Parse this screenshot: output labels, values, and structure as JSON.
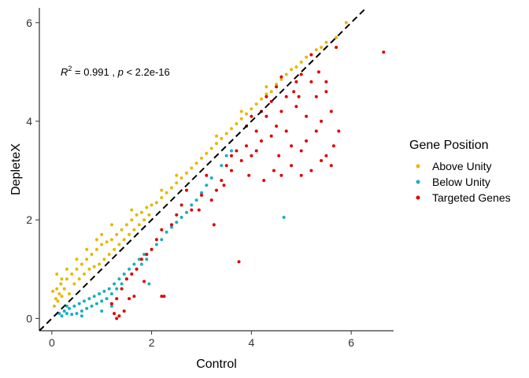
{
  "chart_data": {
    "type": "scatter",
    "xlabel": "Control",
    "ylabel": "DepleteX",
    "xlim": [
      -0.25,
      6.85
    ],
    "ylim": [
      -0.25,
      6.3
    ],
    "x_ticks": [
      0,
      2,
      4,
      6
    ],
    "y_ticks": [
      0,
      2,
      4,
      6
    ],
    "x_tick_labels": [
      "0",
      "2",
      "4",
      "6"
    ],
    "y_tick_labels": [
      "0",
      "2",
      "4",
      "6"
    ],
    "grid": false,
    "legend_position": "right",
    "legend_title": "Gene Position",
    "reference_line": {
      "slope": 1,
      "intercept": 0,
      "style": "dashed",
      "color": "#000000"
    },
    "annotation": {
      "r2_symbol": "R",
      "r2_exp": "2",
      "r2_value": " = 0.991 , ",
      "p_symbol": "p",
      "p_value": " < 2.2e-16"
    },
    "series": [
      {
        "name": "Above Unity",
        "color": "#E6B800",
        "points": [
          [
            0.02,
            0.55
          ],
          [
            0.05,
            0.25
          ],
          [
            0.08,
            0.4
          ],
          [
            0.1,
            0.6
          ],
          [
            0.12,
            0.35
          ],
          [
            0.15,
            0.5
          ],
          [
            0.18,
            0.7
          ],
          [
            0.2,
            0.45
          ],
          [
            0.25,
            0.6
          ],
          [
            0.3,
            0.8
          ],
          [
            0.35,
            0.5
          ],
          [
            0.4,
            0.9
          ],
          [
            0.45,
            0.7
          ],
          [
            0.5,
            1.0
          ],
          [
            0.55,
            0.8
          ],
          [
            0.6,
            1.1
          ],
          [
            0.65,
            0.9
          ],
          [
            0.7,
            1.2
          ],
          [
            0.75,
            1.0
          ],
          [
            0.8,
            1.3
          ],
          [
            0.85,
            1.05
          ],
          [
            0.9,
            1.4
          ],
          [
            0.95,
            1.1
          ],
          [
            1.0,
            1.5
          ],
          [
            1.05,
            1.2
          ],
          [
            1.1,
            1.55
          ],
          [
            1.15,
            1.3
          ],
          [
            1.2,
            1.6
          ],
          [
            1.25,
            1.4
          ],
          [
            1.3,
            1.7
          ],
          [
            1.35,
            1.5
          ],
          [
            1.4,
            1.8
          ],
          [
            1.45,
            1.6
          ],
          [
            1.5,
            1.9
          ],
          [
            1.55,
            1.7
          ],
          [
            1.6,
            2.0
          ],
          [
            1.65,
            1.8
          ],
          [
            1.7,
            2.1
          ],
          [
            1.75,
            1.9
          ],
          [
            1.8,
            2.15
          ],
          [
            1.85,
            2.0
          ],
          [
            1.9,
            2.25
          ],
          [
            1.95,
            2.1
          ],
          [
            2.0,
            2.3
          ],
          [
            2.1,
            2.35
          ],
          [
            2.2,
            2.45
          ],
          [
            2.3,
            2.55
          ],
          [
            2.4,
            2.65
          ],
          [
            2.5,
            2.75
          ],
          [
            2.6,
            2.85
          ],
          [
            2.7,
            2.95
          ],
          [
            2.8,
            3.05
          ],
          [
            2.9,
            3.15
          ],
          [
            3.0,
            3.25
          ],
          [
            3.1,
            3.35
          ],
          [
            3.2,
            3.45
          ],
          [
            3.3,
            3.55
          ],
          [
            3.4,
            3.65
          ],
          [
            3.5,
            3.75
          ],
          [
            3.6,
            3.85
          ],
          [
            3.7,
            3.95
          ],
          [
            3.8,
            4.05
          ],
          [
            3.9,
            4.15
          ],
          [
            4.0,
            4.25
          ],
          [
            4.1,
            4.35
          ],
          [
            4.2,
            4.45
          ],
          [
            4.3,
            4.55
          ],
          [
            4.4,
            4.6
          ],
          [
            4.5,
            4.75
          ],
          [
            4.6,
            4.85
          ],
          [
            4.7,
            4.95
          ],
          [
            4.8,
            5.05
          ],
          [
            4.9,
            5.1
          ],
          [
            5.0,
            5.2
          ],
          [
            5.1,
            5.3
          ],
          [
            5.2,
            5.35
          ],
          [
            5.3,
            5.45
          ],
          [
            5.4,
            5.5
          ],
          [
            5.5,
            5.6
          ],
          [
            5.7,
            5.7
          ],
          [
            5.9,
            6.0
          ],
          [
            1.0,
            1.7
          ],
          [
            1.2,
            1.9
          ],
          [
            0.7,
            1.4
          ],
          [
            0.5,
            1.2
          ],
          [
            0.3,
            1.0
          ],
          [
            2.5,
            2.9
          ],
          [
            3.3,
            3.7
          ],
          [
            4.3,
            4.7
          ],
          [
            1.6,
            2.2
          ],
          [
            0.9,
            1.6
          ],
          [
            0.2,
            0.8
          ],
          [
            0.1,
            0.9
          ],
          [
            3.8,
            4.2
          ],
          [
            2.2,
            2.6
          ]
        ]
      },
      {
        "name": "Below Unity",
        "color": "#1AAFBE",
        "points": [
          [
            0.15,
            0.1
          ],
          [
            0.2,
            0.05
          ],
          [
            0.25,
            0.15
          ],
          [
            0.3,
            0.1
          ],
          [
            0.35,
            0.2
          ],
          [
            0.4,
            0.08
          ],
          [
            0.45,
            0.25
          ],
          [
            0.5,
            0.1
          ],
          [
            0.55,
            0.3
          ],
          [
            0.6,
            0.15
          ],
          [
            0.65,
            0.35
          ],
          [
            0.7,
            0.2
          ],
          [
            0.75,
            0.4
          ],
          [
            0.8,
            0.25
          ],
          [
            0.85,
            0.45
          ],
          [
            0.9,
            0.3
          ],
          [
            0.95,
            0.5
          ],
          [
            1.0,
            0.35
          ],
          [
            1.05,
            0.55
          ],
          [
            1.1,
            0.4
          ],
          [
            1.15,
            0.6
          ],
          [
            1.2,
            0.5
          ],
          [
            1.25,
            0.7
          ],
          [
            1.3,
            0.6
          ],
          [
            1.35,
            0.8
          ],
          [
            1.4,
            0.7
          ],
          [
            1.45,
            0.9
          ],
          [
            1.5,
            0.8
          ],
          [
            1.55,
            1.0
          ],
          [
            1.6,
            0.9
          ],
          [
            1.65,
            1.1
          ],
          [
            1.7,
            1.0
          ],
          [
            1.75,
            1.2
          ],
          [
            1.8,
            1.1
          ],
          [
            1.85,
            1.3
          ],
          [
            1.9,
            1.2
          ],
          [
            2.0,
            1.4
          ],
          [
            2.1,
            1.5
          ],
          [
            2.2,
            1.6
          ],
          [
            2.3,
            1.75
          ],
          [
            2.4,
            1.85
          ],
          [
            2.5,
            1.95
          ],
          [
            2.6,
            2.05
          ],
          [
            2.7,
            2.15
          ],
          [
            2.8,
            2.3
          ],
          [
            2.9,
            2.4
          ],
          [
            3.0,
            2.55
          ],
          [
            3.1,
            2.7
          ],
          [
            3.2,
            2.85
          ],
          [
            3.4,
            3.1
          ],
          [
            3.5,
            3.3
          ],
          [
            3.6,
            3.4
          ],
          [
            4.65,
            2.05
          ],
          [
            1.95,
            0.7
          ],
          [
            1.0,
            0.15
          ],
          [
            0.6,
            0.05
          ],
          [
            0.3,
            0.25
          ],
          [
            1.2,
            0.25
          ]
        ]
      },
      {
        "name": "Targeted Genes",
        "color": "#E00000",
        "points": [
          [
            6.65,
            5.4
          ],
          [
            5.7,
            5.5
          ],
          [
            5.2,
            5.35
          ],
          [
            5.0,
            4.95
          ],
          [
            4.9,
            4.8
          ],
          [
            4.6,
            4.9
          ],
          [
            4.5,
            4.7
          ],
          [
            4.4,
            4.4
          ],
          [
            4.3,
            4.5
          ],
          [
            4.2,
            4.2
          ],
          [
            4.0,
            4.1
          ],
          [
            5.5,
            4.6
          ],
          [
            5.6,
            4.2
          ],
          [
            5.4,
            4.0
          ],
          [
            5.3,
            3.8
          ],
          [
            5.1,
            3.6
          ],
          [
            5.0,
            3.4
          ],
          [
            4.8,
            3.5
          ],
          [
            4.7,
            3.8
          ],
          [
            4.5,
            3.9
          ],
          [
            4.4,
            3.7
          ],
          [
            4.2,
            3.6
          ],
          [
            4.1,
            3.4
          ],
          [
            4.0,
            3.3
          ],
          [
            3.9,
            3.5
          ],
          [
            3.8,
            3.2
          ],
          [
            3.7,
            3.4
          ],
          [
            3.6,
            3.0
          ],
          [
            3.5,
            3.1
          ],
          [
            3.4,
            2.8
          ],
          [
            5.5,
            3.3
          ],
          [
            5.6,
            3.1
          ],
          [
            5.4,
            3.2
          ],
          [
            5.2,
            3.0
          ],
          [
            5.0,
            2.9
          ],
          [
            4.8,
            3.1
          ],
          [
            4.6,
            2.9
          ],
          [
            4.9,
            4.3
          ],
          [
            5.1,
            4.1
          ],
          [
            5.3,
            4.5
          ],
          [
            5.5,
            4.8
          ],
          [
            4.3,
            4.1
          ],
          [
            4.6,
            4.2
          ],
          [
            4.7,
            4.5
          ],
          [
            3.9,
            3.9
          ],
          [
            4.1,
            3.8
          ],
          [
            3.6,
            3.3
          ],
          [
            3.3,
            2.6
          ],
          [
            3.2,
            2.4
          ],
          [
            3.0,
            2.5
          ],
          [
            2.8,
            2.2
          ],
          [
            2.6,
            2.3
          ],
          [
            2.5,
            2.1
          ],
          [
            2.4,
            1.9
          ],
          [
            2.2,
            1.8
          ],
          [
            2.1,
            1.6
          ],
          [
            2.0,
            1.4
          ],
          [
            1.9,
            1.3
          ],
          [
            1.8,
            1.2
          ],
          [
            1.7,
            1.0
          ],
          [
            1.6,
            0.9
          ],
          [
            1.5,
            0.8
          ],
          [
            1.4,
            0.6
          ],
          [
            1.3,
            0.4
          ],
          [
            1.2,
            0.3
          ],
          [
            1.25,
            0.1
          ],
          [
            1.3,
            0.0
          ],
          [
            1.35,
            0.05
          ],
          [
            1.45,
            0.15
          ],
          [
            1.55,
            0.4
          ],
          [
            1.65,
            0.45
          ],
          [
            1.85,
            0.75
          ],
          [
            2.2,
            0.45
          ],
          [
            2.25,
            0.45
          ],
          [
            3.75,
            1.15
          ],
          [
            2.95,
            2.2
          ],
          [
            3.25,
            1.9
          ],
          [
            2.7,
            2.6
          ],
          [
            3.1,
            2.9
          ],
          [
            4.25,
            2.8
          ],
          [
            5.2,
            4.8
          ],
          [
            5.35,
            5.0
          ],
          [
            4.85,
            4.6
          ],
          [
            4.95,
            4.5
          ],
          [
            5.65,
            3.5
          ],
          [
            5.75,
            3.8
          ],
          [
            4.55,
            3.3
          ],
          [
            4.45,
            3.0
          ],
          [
            3.95,
            2.9
          ],
          [
            3.45,
            2.7
          ]
        ]
      }
    ]
  }
}
